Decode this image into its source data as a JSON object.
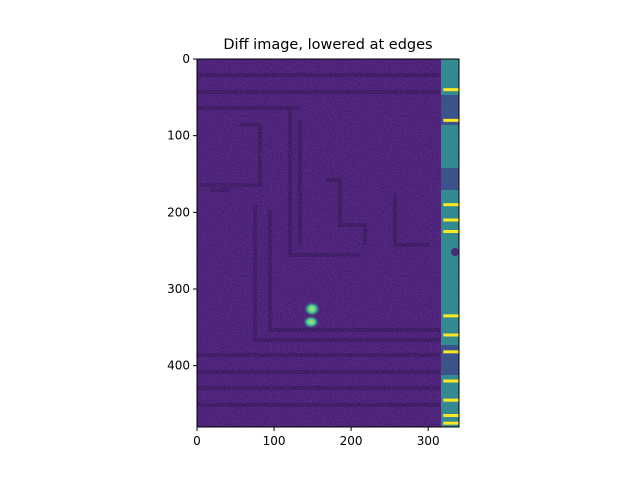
{
  "chart_data": {
    "type": "heatmap",
    "title": "Diff image, lowered at edges",
    "xlabel": "",
    "ylabel": "",
    "image_width": 340,
    "image_height": 480,
    "xlim": [
      0,
      340
    ],
    "ylim": [
      480,
      0
    ],
    "x_ticks": [
      0,
      100,
      200,
      300
    ],
    "y_ticks": [
      0,
      100,
      200,
      300,
      400
    ],
    "colormap": "viridis",
    "colors": {
      "background": "#46136f",
      "edge_dark": "#3a0f5e",
      "mid": "#3a6f8f",
      "strip": "#2e8f8c",
      "bright": "#a0da3a",
      "highlight": "#fde725",
      "spot": "#3fd0a0"
    },
    "features": {
      "right_strip_x": [
        317,
        340
      ],
      "bright_spot_center": [
        148,
        335
      ],
      "bright_bars_y": [
        40,
        80,
        190,
        210,
        225,
        335,
        360,
        382,
        420,
        445,
        465,
        475
      ]
    }
  }
}
